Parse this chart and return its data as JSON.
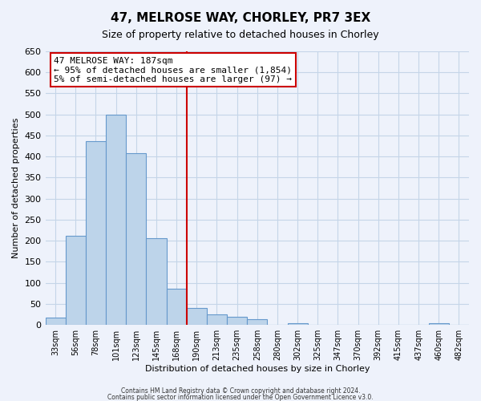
{
  "title": "47, MELROSE WAY, CHORLEY, PR7 3EX",
  "subtitle": "Size of property relative to detached houses in Chorley",
  "xlabel": "Distribution of detached houses by size in Chorley",
  "ylabel": "Number of detached properties",
  "bin_labels": [
    "33sqm",
    "56sqm",
    "78sqm",
    "101sqm",
    "123sqm",
    "145sqm",
    "168sqm",
    "190sqm",
    "213sqm",
    "235sqm",
    "258sqm",
    "280sqm",
    "302sqm",
    "325sqm",
    "347sqm",
    "370sqm",
    "392sqm",
    "415sqm",
    "437sqm",
    "460sqm",
    "482sqm"
  ],
  "bar_heights": [
    18,
    212,
    437,
    500,
    408,
    207,
    87,
    40,
    25,
    20,
    13,
    0,
    5,
    0,
    0,
    0,
    0,
    0,
    0,
    5,
    0
  ],
  "bar_color": "#bdd4ea",
  "bar_edge_color": "#6699cc",
  "property_line_label": "47 MELROSE WAY: 187sqm",
  "annotation_line1": "← 95% of detached houses are smaller (1,854)",
  "annotation_line2": "5% of semi-detached houses are larger (97) →",
  "annotation_box_facecolor": "#ffffff",
  "annotation_box_edgecolor": "#cc0000",
  "vline_color": "#cc0000",
  "vline_x_index": 7,
  "ylim": [
    0,
    650
  ],
  "yticks": [
    0,
    50,
    100,
    150,
    200,
    250,
    300,
    350,
    400,
    450,
    500,
    550,
    600,
    650
  ],
  "footer1": "Contains HM Land Registry data © Crown copyright and database right 2024.",
  "footer2": "Contains public sector information licensed under the Open Government Licence v3.0.",
  "bg_color": "#eef2fb",
  "grid_color": "#c5d5e8",
  "title_fontsize": 11,
  "subtitle_fontsize": 9,
  "xlabel_fontsize": 8,
  "ylabel_fontsize": 8,
  "tick_fontsize": 7,
  "ytick_fontsize": 8,
  "annotation_fontsize": 8,
  "footer_fontsize": 5.5
}
